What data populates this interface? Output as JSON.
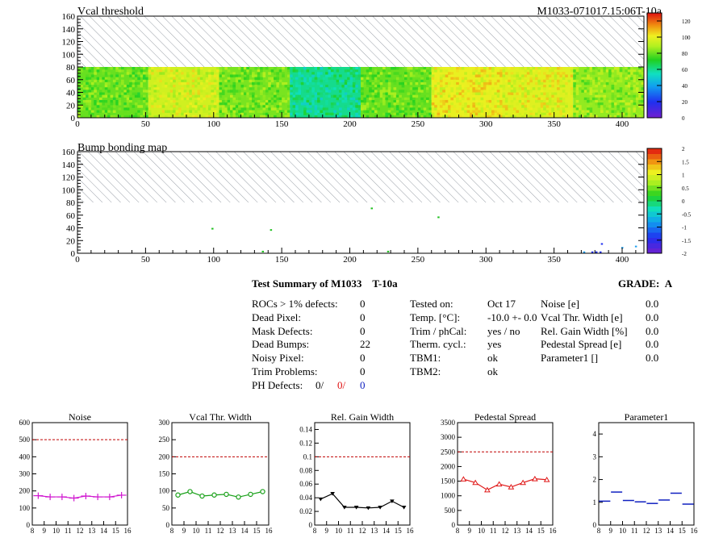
{
  "header": {
    "title": "Vcal threshold",
    "id_label": "M1033-071017.15:06T-10a"
  },
  "map2": {
    "title": "Bump bonding map"
  },
  "colors": {
    "hatch": "#9aa0a8",
    "noise": "#d018d0",
    "vcal": "#18a018",
    "gain": "#000000",
    "ped": "#e01818",
    "param": "#1020c0",
    "red_ref": "#c00000"
  },
  "summary": {
    "title": "Test Summary of M1033",
    "tag": "T-10a",
    "grade_label": "GRADE:",
    "grade": "A",
    "col1": [
      {
        "label": "ROCs > 1% defects:",
        "value": "0"
      },
      {
        "label": "Dead Pixel:",
        "value": "0"
      },
      {
        "label": "Mask Defects:",
        "value": "0"
      },
      {
        "label": "Dead Bumps:",
        "value": "22"
      },
      {
        "label": "Noisy Pixel:",
        "value": "0"
      },
      {
        "label": "Trim Problems:",
        "value": "0"
      }
    ],
    "ph": {
      "label": "PH Defects:",
      "v1": "0/",
      "v2": "0/",
      "v3": "0"
    },
    "col2": [
      {
        "label": "Tested on:",
        "value": "Oct 17"
      },
      {
        "label": "Temp. [°C]:",
        "value": "-10.0 +- 0.0"
      },
      {
        "label": "Trim / phCal:",
        "value": "yes / no"
      },
      {
        "label": "Therm. cycl.:",
        "value": "yes"
      },
      {
        "label": "TBM1:",
        "value": "ok"
      },
      {
        "label": "TBM2:",
        "value": "ok"
      }
    ],
    "col3": [
      {
        "label": "Noise [e]",
        "value": "0.0"
      },
      {
        "label": "Vcal Thr. Width [e]",
        "value": "0.0"
      },
      {
        "label": "Rel. Gain Width [%]",
        "value": "0.0"
      },
      {
        "label": "Pedestal Spread [e]",
        "value": "0.0"
      },
      {
        "label": "Parameter1 []",
        "value": "0.0"
      }
    ]
  },
  "chart_data": [
    {
      "type": "heatmap",
      "title": "Vcal threshold",
      "xlim": [
        0,
        416
      ],
      "ylim": [
        0,
        160
      ],
      "xticks": [
        0,
        50,
        100,
        150,
        200,
        250,
        300,
        350,
        400
      ],
      "yticks": [
        0,
        20,
        40,
        60,
        80,
        100,
        120,
        140,
        160
      ],
      "filled_rows": [
        0,
        80
      ],
      "hatched_rows": [
        80,
        160
      ],
      "roc_bands": [
        {
          "x": [
            0,
            52
          ],
          "level": 80
        },
        {
          "x": [
            52,
            104
          ],
          "level": 95
        },
        {
          "x": [
            104,
            156
          ],
          "level": 82
        },
        {
          "x": [
            156,
            208
          ],
          "level": 60
        },
        {
          "x": [
            208,
            260
          ],
          "level": 80
        },
        {
          "x": [
            260,
            312
          ],
          "level": 100
        },
        {
          "x": [
            312,
            364
          ],
          "level": 98
        },
        {
          "x": [
            364,
            416
          ],
          "level": 85
        }
      ],
      "colorbar": {
        "range": [
          0,
          130
        ],
        "ticks": [
          0,
          20,
          40,
          60,
          80,
          100,
          120
        ]
      }
    },
    {
      "type": "heatmap",
      "title": "Bump bonding map",
      "xlim": [
        0,
        416
      ],
      "ylim": [
        0,
        160
      ],
      "xticks": [
        0,
        50,
        100,
        150,
        200,
        250,
        300,
        350,
        400
      ],
      "yticks": [
        0,
        20,
        40,
        60,
        80,
        100,
        120,
        140,
        160
      ],
      "hatched_rows": [
        80,
        160
      ],
      "points": [
        [
          216,
          70
        ],
        [
          265,
          56
        ],
        [
          99,
          38
        ],
        [
          142,
          36
        ],
        [
          136,
          2
        ],
        [
          228,
          2
        ],
        [
          385,
          14
        ],
        [
          384,
          1
        ],
        [
          381,
          1
        ],
        [
          378,
          1
        ],
        [
          372,
          1
        ],
        [
          400,
          8
        ],
        [
          410,
          10
        ]
      ],
      "colorbar": {
        "range": [
          -2,
          2
        ],
        "ticks": [
          "-2",
          "-1.5",
          "-1",
          "-0.5",
          "0",
          "0.5",
          "1",
          "1.5",
          "2"
        ]
      }
    },
    {
      "type": "line",
      "title": "Noise",
      "xlim": [
        8,
        16
      ],
      "ylim": [
        0,
        600
      ],
      "xticks": [
        8,
        9,
        10,
        11,
        12,
        13,
        14,
        15,
        16
      ],
      "yticks": [
        0,
        100,
        200,
        300,
        400,
        500,
        600
      ],
      "ref": 500,
      "x": [
        8.5,
        9.5,
        10.5,
        11.5,
        12.5,
        13.5,
        14.5,
        15.5
      ],
      "y": [
        172,
        165,
        165,
        158,
        170,
        165,
        165,
        175
      ],
      "marker": "cross"
    },
    {
      "type": "line",
      "title": "Vcal Thr. Width",
      "xlim": [
        8,
        16
      ],
      "ylim": [
        0,
        300
      ],
      "xticks": [
        8,
        9,
        10,
        11,
        12,
        13,
        14,
        15,
        16
      ],
      "yticks": [
        0,
        50,
        100,
        150,
        200,
        250,
        300
      ],
      "ref": 200,
      "x": [
        8.5,
        9.5,
        10.5,
        11.5,
        12.5,
        13.5,
        14.5,
        15.5
      ],
      "y": [
        88,
        98,
        85,
        88,
        90,
        82,
        90,
        98
      ],
      "marker": "circle"
    },
    {
      "type": "line",
      "title": "Rel. Gain Width",
      "xlim": [
        8,
        16
      ],
      "ylim": [
        0,
        0.15
      ],
      "xticks": [
        8,
        9,
        10,
        11,
        12,
        13,
        14,
        15,
        16
      ],
      "yticks": [
        0,
        0.02,
        0.04,
        0.06,
        0.08,
        0.1,
        0.12,
        0.14
      ],
      "ytick_labels": [
        "0",
        "0.02",
        "0.04",
        "0.06",
        "0.08",
        "0.1",
        "0.12",
        "0.14"
      ],
      "ref": 0.1,
      "x": [
        8.5,
        9.5,
        10.5,
        11.5,
        12.5,
        13.5,
        14.5,
        15.5
      ],
      "y": [
        0.038,
        0.046,
        0.026,
        0.026,
        0.025,
        0.026,
        0.035,
        0.026
      ],
      "marker": "triangle-down"
    },
    {
      "type": "line",
      "title": "Pedestal Spread",
      "xlim": [
        8,
        16
      ],
      "ylim": [
        0,
        3500
      ],
      "xticks": [
        8,
        9,
        10,
        11,
        12,
        13,
        14,
        15,
        16
      ],
      "yticks": [
        0,
        500,
        1000,
        1500,
        2000,
        2500,
        3000,
        3500
      ],
      "ref": 2500,
      "x": [
        8.5,
        9.5,
        10.5,
        11.5,
        12.5,
        13.5,
        14.5,
        15.5
      ],
      "y": [
        1570,
        1450,
        1200,
        1400,
        1300,
        1450,
        1580,
        1550
      ],
      "marker": "triangle-up"
    },
    {
      "type": "scatter",
      "title": "Parameter1",
      "xlim": [
        8,
        16
      ],
      "ylim": [
        0,
        4.5
      ],
      "xticks": [
        8,
        9,
        10,
        11,
        12,
        13,
        14,
        15,
        16
      ],
      "yticks": [
        0,
        1,
        2,
        3,
        4
      ],
      "x": [
        8.5,
        9.5,
        10.5,
        11.5,
        12.5,
        13.5,
        14.5,
        15.5
      ],
      "y": [
        1.05,
        1.45,
        1.08,
        1.02,
        0.95,
        1.1,
        1.4,
        0.92
      ],
      "marker": "hbar"
    }
  ]
}
